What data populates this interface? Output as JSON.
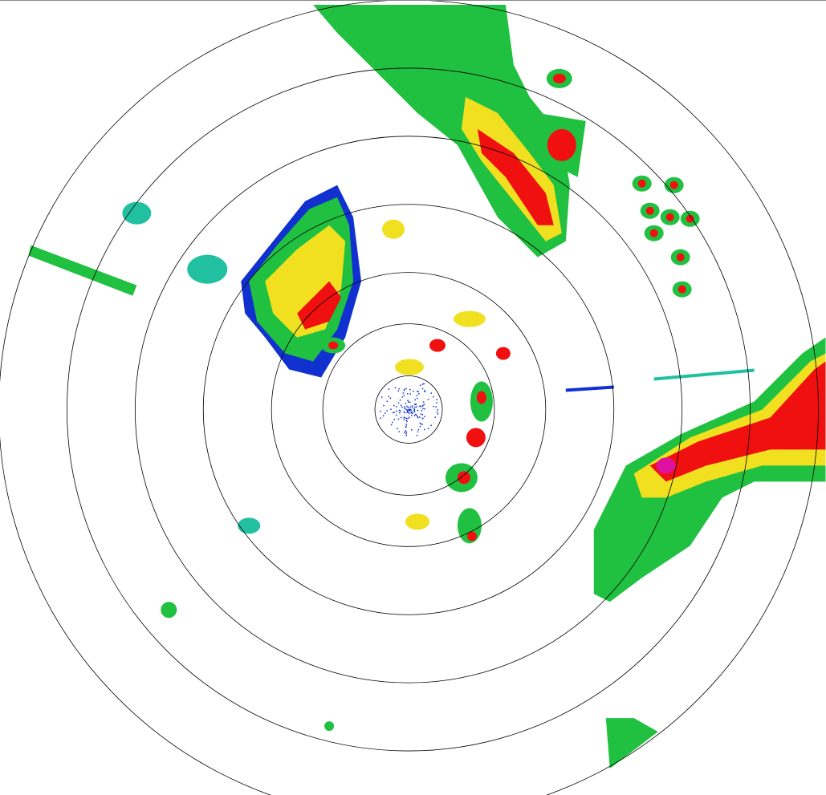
{
  "radar": {
    "range_rings": 7,
    "palette": {
      "very_light": "#1030d0",
      "light": "#20c0a0",
      "moderate": "#20c040",
      "strong": "#f0e020",
      "heavy": "#f08010",
      "intense": "#f01010",
      "extreme": "#e010a0"
    },
    "ring_color": "#000000",
    "background": "#ffffff"
  }
}
